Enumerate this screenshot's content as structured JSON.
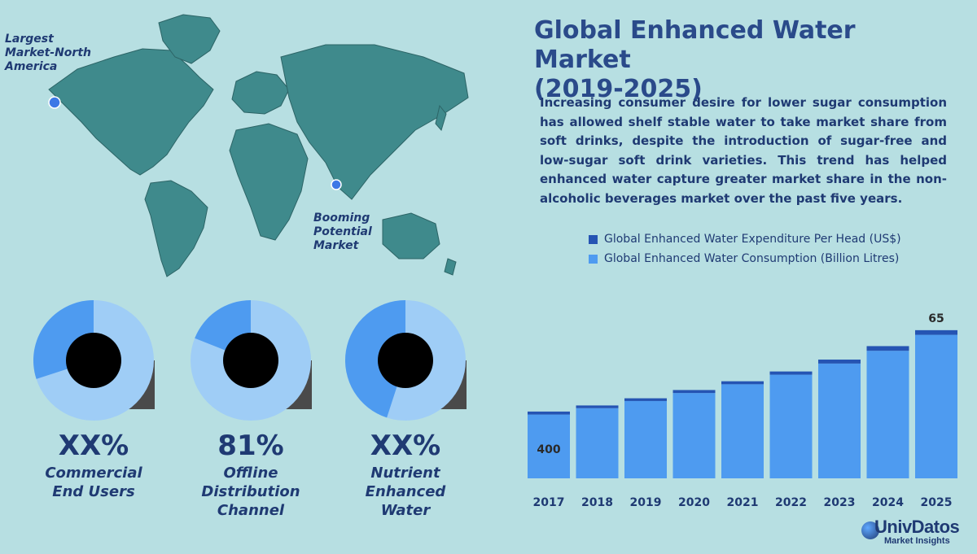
{
  "title": "Global Enhanced Water Market\n(2019-2025)",
  "description": "Increasing consumer desire for lower sugar consumption has allowed shelf stable water to take market share from soft drinks, despite the introduction of sugar-free and low-sugar soft drink varieties. This trend has helped enhanced water capture greater market share in the non-alcoholic beverages market over the past five years.",
  "map": {
    "label_north_america": "Largest\nMarket-North\nAmerica",
    "label_india": "Booming\nPotential\nMarket"
  },
  "legend": {
    "items": [
      {
        "label": "Global Enhanced Water Expenditure Per Head (US$)",
        "color": "#2554b3"
      },
      {
        "label": "Global Enhanced Water Consumption (Billion Litres)",
        "color": "#4e9bf0"
      }
    ]
  },
  "cards": [
    {
      "value": "XX%",
      "label": "Commercial\nEnd Users",
      "share": 0.3
    },
    {
      "value": "81%",
      "label": "Offline\nDistribution\nChannel",
      "share": 0.19
    },
    {
      "value": "XX%",
      "label": "Nutrient\nEnhanced\nWater",
      "share": 0.45
    }
  ],
  "colors": {
    "background": "#b7dfe2",
    "land": "#3f8a8c",
    "donut_light": "#9fcdf6",
    "donut_dark": "#4e9bf0",
    "text": "#1f3a73",
    "bar_cap": "#2554b3",
    "bar_fill": "#4e9bf0"
  },
  "chart_data": {
    "type": "bar",
    "stacked": true,
    "categories": [
      "2017",
      "2018",
      "2019",
      "2020",
      "2021",
      "2022",
      "2023",
      "2024",
      "2025"
    ],
    "series": [
      {
        "name": "Global Enhanced Water Consumption (Billion Litres)",
        "values": [
          400,
          440,
          485,
          535,
          590,
          650,
          720,
          800,
          900
        ]
      },
      {
        "name": "Global Enhanced Water Expenditure Per Head (US$)",
        "values": [
          42,
          38,
          38,
          42,
          42,
          45,
          55,
          65,
          65
        ]
      }
    ],
    "data_labels": {
      "first": "400",
      "last": "65"
    },
    "ylim": [
      0,
      1000
    ],
    "title": "",
    "xlabel": "",
    "ylabel": ""
  },
  "logo": {
    "name": "UnivDatos",
    "subtitle": "Market Insights"
  }
}
